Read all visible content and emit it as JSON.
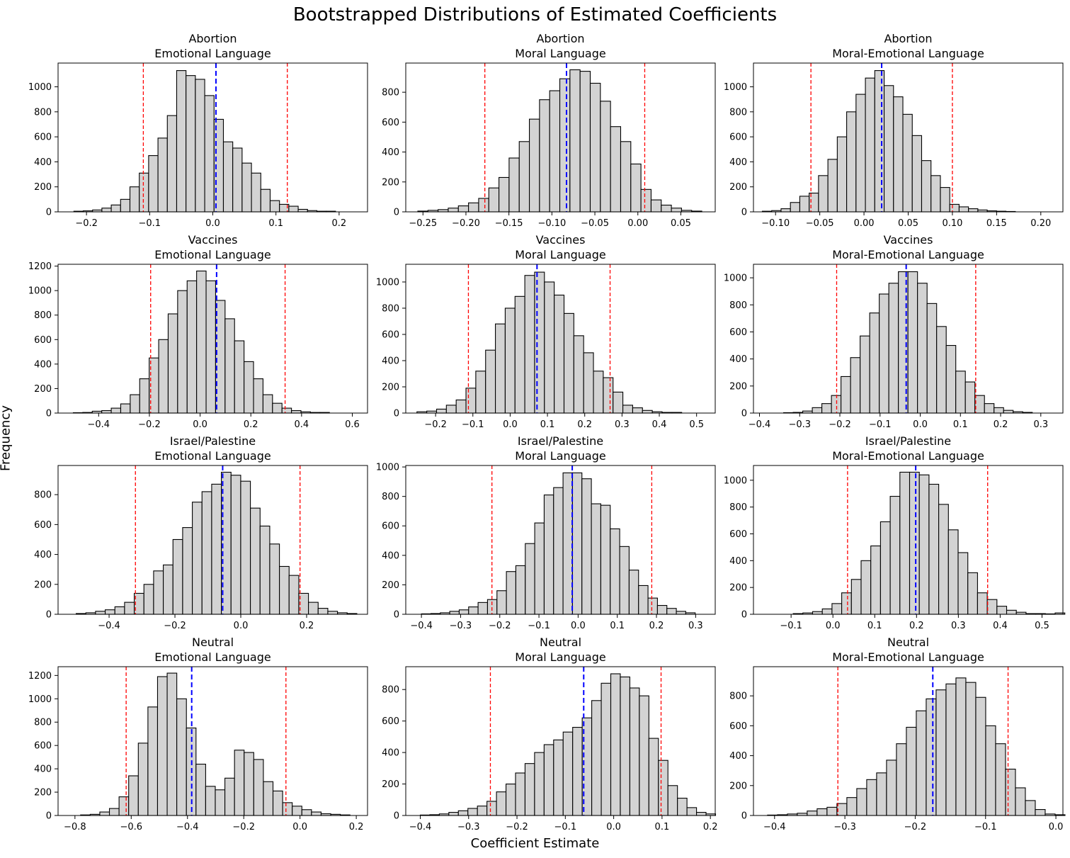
{
  "figure": {
    "title": "Bootstrapped Distributions of Estimated Coefficients",
    "xlabel": "Coefficient Estimate",
    "ylabel": "Frequency"
  },
  "style": {
    "bar_fill": "#d3d3d3",
    "bar_edge": "#000000",
    "mean_line": "#0000ff",
    "ci_line": "#ff0000"
  },
  "chart_data": [
    {
      "type": "bar",
      "topic": "Abortion",
      "language": "Emotional Language",
      "bin_start": -0.22,
      "bin_width": 0.0148,
      "values": [
        5,
        8,
        15,
        30,
        55,
        100,
        200,
        310,
        450,
        590,
        770,
        1130,
        1090,
        1060,
        930,
        740,
        560,
        510,
        390,
        310,
        180,
        90,
        60,
        45,
        20,
        10,
        5,
        5
      ],
      "mean": 0.005,
      "ci": [
        -0.11,
        0.118
      ],
      "xlim": [
        -0.245,
        0.245
      ],
      "ylim": [
        0,
        1190
      ],
      "xticks": [
        -0.2,
        -0.1,
        0.0,
        0.1,
        0.2
      ],
      "xtick_labels": [
        "−0.2",
        "−0.1",
        "0.0",
        "0.1",
        "0.2"
      ],
      "yticks": [
        0,
        200,
        400,
        600,
        800,
        1000
      ],
      "ytick_labels": [
        "0",
        "200",
        "400",
        "600",
        "800",
        "1000"
      ]
    },
    {
      "type": "bar",
      "topic": "Abortion",
      "language": "Moral Language",
      "bin_start": -0.256,
      "bin_width": 0.0118,
      "values": [
        5,
        10,
        15,
        25,
        40,
        60,
        90,
        160,
        230,
        360,
        470,
        620,
        750,
        810,
        890,
        950,
        940,
        860,
        740,
        570,
        470,
        320,
        150,
        80,
        45,
        25,
        10,
        5
      ],
      "mean": -0.083,
      "ci": [
        -0.178,
        0.008
      ],
      "xlim": [
        -0.27,
        0.09
      ],
      "ylim": [
        0,
        995
      ],
      "xticks": [
        -0.25,
        -0.2,
        -0.15,
        -0.1,
        -0.05,
        0.0,
        0.05
      ],
      "xtick_labels": [
        "−0.25",
        "−0.20",
        "−0.15",
        "−0.10",
        "−0.05",
        "0.00",
        "0.05"
      ],
      "yticks": [
        0,
        200,
        400,
        600,
        800
      ],
      "ytick_labels": [
        "0",
        "200",
        "400",
        "600",
        "800"
      ]
    },
    {
      "type": "bar",
      "topic": "Abortion",
      "language": "Moral-Emotional Language",
      "bin_start": -0.115,
      "bin_width": 0.0106,
      "values": [
        5,
        10,
        25,
        75,
        125,
        150,
        290,
        420,
        600,
        800,
        940,
        1070,
        1130,
        1010,
        920,
        780,
        610,
        410,
        290,
        195,
        60,
        40,
        25,
        15,
        8,
        5,
        3
      ],
      "mean": 0.02,
      "ci": [
        -0.06,
        0.1
      ],
      "xlim": [
        -0.125,
        0.225
      ],
      "ylim": [
        0,
        1190
      ],
      "xticks": [
        -0.1,
        -0.05,
        0.0,
        0.05,
        0.1,
        0.15,
        0.2
      ],
      "xtick_labels": [
        "−0.10",
        "−0.05",
        "0.00",
        "0.05",
        "0.10",
        "0.15",
        "0.20"
      ],
      "yticks": [
        0,
        200,
        400,
        600,
        800,
        1000
      ],
      "ytick_labels": [
        "0",
        "200",
        "400",
        "600",
        "800",
        "1000"
      ]
    },
    {
      "type": "bar",
      "topic": "Vaccines",
      "language": "Emotional Language",
      "bin_start": -0.5,
      "bin_width": 0.0374,
      "values": [
        3,
        5,
        15,
        20,
        40,
        75,
        150,
        280,
        450,
        600,
        810,
        1000,
        1080,
        1160,
        1080,
        920,
        770,
        590,
        420,
        280,
        150,
        80,
        40,
        20,
        10,
        5,
        5
      ],
      "mean": 0.065,
      "ci": [
        -0.195,
        0.335
      ],
      "xlim": [
        -0.56,
        0.66
      ],
      "ylim": [
        0,
        1215
      ],
      "xticks": [
        -0.4,
        -0.2,
        0.0,
        0.2,
        0.4,
        0.6
      ],
      "xtick_labels": [
        "−0.4",
        "−0.2",
        "0.0",
        "0.2",
        "0.4",
        "0.6"
      ],
      "yticks": [
        0,
        200,
        400,
        600,
        800,
        1000,
        1200
      ],
      "ytick_labels": [
        "0",
        "200",
        "400",
        "600",
        "800",
        "1000",
        "1200"
      ]
    },
    {
      "type": "bar",
      "topic": "Vaccines",
      "language": "Moral Language",
      "bin_start": -0.25,
      "bin_width": 0.0263,
      "values": [
        10,
        15,
        30,
        60,
        100,
        190,
        320,
        480,
        680,
        800,
        890,
        1050,
        1075,
        1000,
        900,
        760,
        590,
        460,
        320,
        270,
        160,
        60,
        40,
        20,
        10,
        5,
        5
      ],
      "mean": 0.072,
      "ci": [
        -0.112,
        0.268
      ],
      "xlim": [
        -0.28,
        0.55
      ],
      "ylim": [
        0,
        1135
      ],
      "xticks": [
        -0.2,
        -0.1,
        0.0,
        0.1,
        0.2,
        0.3,
        0.4,
        0.5
      ],
      "xtick_labels": [
        "−0.2",
        "−0.1",
        "0.0",
        "0.1",
        "0.2",
        "0.3",
        "0.4",
        "0.5"
      ],
      "yticks": [
        0,
        200,
        400,
        600,
        800,
        1000
      ],
      "ytick_labels": [
        "0",
        "200",
        "400",
        "600",
        "800",
        "1000"
      ]
    },
    {
      "type": "bar",
      "topic": "Vaccines",
      "language": "Moral-Emotional Language",
      "bin_start": -0.34,
      "bin_width": 0.0238,
      "values": [
        3,
        5,
        15,
        40,
        70,
        130,
        270,
        410,
        570,
        740,
        880,
        960,
        1045,
        1045,
        960,
        810,
        640,
        500,
        310,
        230,
        130,
        70,
        40,
        20,
        10,
        5
      ],
      "mean": -0.035,
      "ci": [
        -0.208,
        0.138
      ],
      "xlim": [
        -0.415,
        0.355
      ],
      "ylim": [
        0,
        1100
      ],
      "xticks": [
        -0.4,
        -0.3,
        -0.2,
        -0.1,
        0.0,
        0.1,
        0.2,
        0.3
      ],
      "xtick_labels": [
        "−0.4",
        "−0.3",
        "−0.2",
        "−0.1",
        "0.0",
        "0.1",
        "0.2",
        "0.3"
      ],
      "yticks": [
        0,
        200,
        400,
        600,
        800,
        1000
      ],
      "ytick_labels": [
        "0",
        "200",
        "400",
        "600",
        "800",
        "1000"
      ]
    },
    {
      "type": "bar",
      "topic": "Israel/Palestine",
      "language": "Emotional Language",
      "bin_start": -0.5,
      "bin_width": 0.0294,
      "values": [
        5,
        10,
        20,
        30,
        50,
        80,
        140,
        200,
        290,
        330,
        500,
        580,
        750,
        820,
        870,
        950,
        930,
        890,
        710,
        590,
        470,
        320,
        260,
        140,
        80,
        40,
        20,
        10,
        5
      ],
      "mean": -0.055,
      "ci": [
        -0.32,
        0.18
      ],
      "xlim": [
        -0.555,
        0.385
      ],
      "ylim": [
        0,
        995
      ],
      "xticks": [
        -0.4,
        -0.2,
        0.0,
        0.2
      ],
      "xtick_labels": [
        "−0.4",
        "−0.2",
        "0.0",
        "0.2"
      ],
      "yticks": [
        0,
        200,
        400,
        600,
        800
      ],
      "ytick_labels": [
        "0",
        "200",
        "400",
        "600",
        "800"
      ]
    },
    {
      "type": "bar",
      "topic": "Israel/Palestine",
      "language": "Moral Language",
      "bin_start": -0.4,
      "bin_width": 0.0241,
      "values": [
        3,
        5,
        10,
        20,
        30,
        50,
        80,
        100,
        160,
        290,
        330,
        480,
        620,
        810,
        860,
        960,
        960,
        920,
        750,
        740,
        580,
        460,
        300,
        195,
        110,
        60,
        40,
        20,
        10
      ],
      "mean": -0.015,
      "ci": [
        -0.22,
        0.188
      ],
      "xlim": [
        -0.44,
        0.35
      ],
      "ylim": [
        0,
        1010
      ],
      "xticks": [
        -0.4,
        -0.3,
        -0.2,
        -0.1,
        0.0,
        0.1,
        0.2,
        0.3
      ],
      "xtick_labels": [
        "−0.4",
        "−0.3",
        "−0.2",
        "−0.1",
        "0.0",
        "0.1",
        "0.2",
        "0.3"
      ],
      "yticks": [
        0,
        200,
        400,
        600,
        800,
        1000
      ],
      "ytick_labels": [
        "0",
        "200",
        "400",
        "600",
        "800",
        "1000"
      ]
    },
    {
      "type": "bar",
      "topic": "Israel/Palestine",
      "language": "Moral-Emotional Language",
      "bin_start": -0.095,
      "bin_width": 0.0232,
      "values": [
        5,
        10,
        20,
        40,
        80,
        160,
        260,
        400,
        510,
        690,
        880,
        1060,
        1060,
        1040,
        970,
        820,
        630,
        460,
        310,
        160,
        110,
        60,
        30,
        15,
        5,
        5,
        3,
        10
      ],
      "mean": 0.198,
      "ci": [
        0.035,
        0.37
      ],
      "xlim": [
        -0.19,
        0.55
      ],
      "ylim": [
        0,
        1110
      ],
      "xticks": [
        -0.1,
        0.0,
        0.1,
        0.2,
        0.3,
        0.4,
        0.5
      ],
      "xtick_labels": [
        "−0.1",
        "0.0",
        "0.1",
        "0.2",
        "0.3",
        "0.4",
        "0.5"
      ],
      "yticks": [
        0,
        200,
        400,
        600,
        800,
        1000
      ],
      "ytick_labels": [
        "0",
        "200",
        "400",
        "600",
        "800",
        "1000"
      ]
    },
    {
      "type": "bar",
      "topic": "Neutral",
      "language": "Emotional Language",
      "bin_start": -0.78,
      "bin_width": 0.0342,
      "values": [
        5,
        10,
        30,
        60,
        160,
        340,
        620,
        930,
        1190,
        1220,
        1000,
        750,
        440,
        250,
        220,
        320,
        560,
        540,
        480,
        290,
        210,
        110,
        80,
        50,
        30,
        15,
        10,
        5
      ],
      "mean": -0.385,
      "ci": [
        -0.618,
        -0.05
      ],
      "xlim": [
        -0.86,
        0.24
      ],
      "ylim": [
        0,
        1275
      ],
      "xticks": [
        -0.8,
        -0.6,
        -0.4,
        -0.2,
        0.0,
        0.2
      ],
      "xtick_labels": [
        "−0.8",
        "−0.6",
        "−0.4",
        "−0.2",
        "0.0",
        "0.2"
      ],
      "yticks": [
        0,
        200,
        400,
        600,
        800,
        1000,
        1200
      ],
      "ytick_labels": [
        "0",
        "200",
        "400",
        "600",
        "800",
        "1000",
        "1200"
      ]
    },
    {
      "type": "bar",
      "topic": "Neutral",
      "language": "Moral Language",
      "bin_start": -0.4,
      "bin_width": 0.0197,
      "values": [
        3,
        5,
        10,
        20,
        30,
        45,
        60,
        90,
        150,
        200,
        270,
        330,
        400,
        450,
        480,
        530,
        560,
        620,
        730,
        840,
        900,
        880,
        810,
        760,
        490,
        350,
        190,
        110,
        50,
        20,
        10
      ],
      "mean": -0.062,
      "ci": [
        -0.255,
        0.098
      ],
      "xlim": [
        -0.43,
        0.21
      ],
      "ylim": [
        0,
        945
      ],
      "xticks": [
        -0.4,
        -0.3,
        -0.2,
        -0.1,
        0.0,
        0.1,
        0.2
      ],
      "xtick_labels": [
        "−0.4",
        "−0.3",
        "−0.2",
        "−0.1",
        "0.0",
        "0.1",
        "0.2"
      ],
      "yticks": [
        0,
        200,
        400,
        600,
        800
      ],
      "ytick_labels": [
        "0",
        "200",
        "400",
        "600",
        "800"
      ]
    },
    {
      "type": "bar",
      "topic": "Neutral",
      "language": "Moral-Emotional Language",
      "bin_start": -0.41,
      "bin_width": 0.0141,
      "values": [
        3,
        5,
        10,
        15,
        30,
        45,
        55,
        80,
        120,
        180,
        240,
        285,
        370,
        480,
        590,
        700,
        780,
        840,
        880,
        920,
        890,
        790,
        600,
        480,
        310,
        185,
        100,
        40,
        10,
        5
      ],
      "mean": -0.175,
      "ci": [
        -0.31,
        -0.068
      ],
      "xlim": [
        -0.43,
        0.01
      ],
      "ylim": [
        0,
        995
      ],
      "xticks": [
        -0.4,
        -0.3,
        -0.2,
        -0.1,
        0.0
      ],
      "xtick_labels": [
        "−0.4",
        "−0.3",
        "−0.2",
        "−0.1",
        "0.0"
      ],
      "yticks": [
        0,
        200,
        400,
        600,
        800
      ],
      "ytick_labels": [
        "0",
        "200",
        "400",
        "600",
        "800"
      ]
    }
  ]
}
